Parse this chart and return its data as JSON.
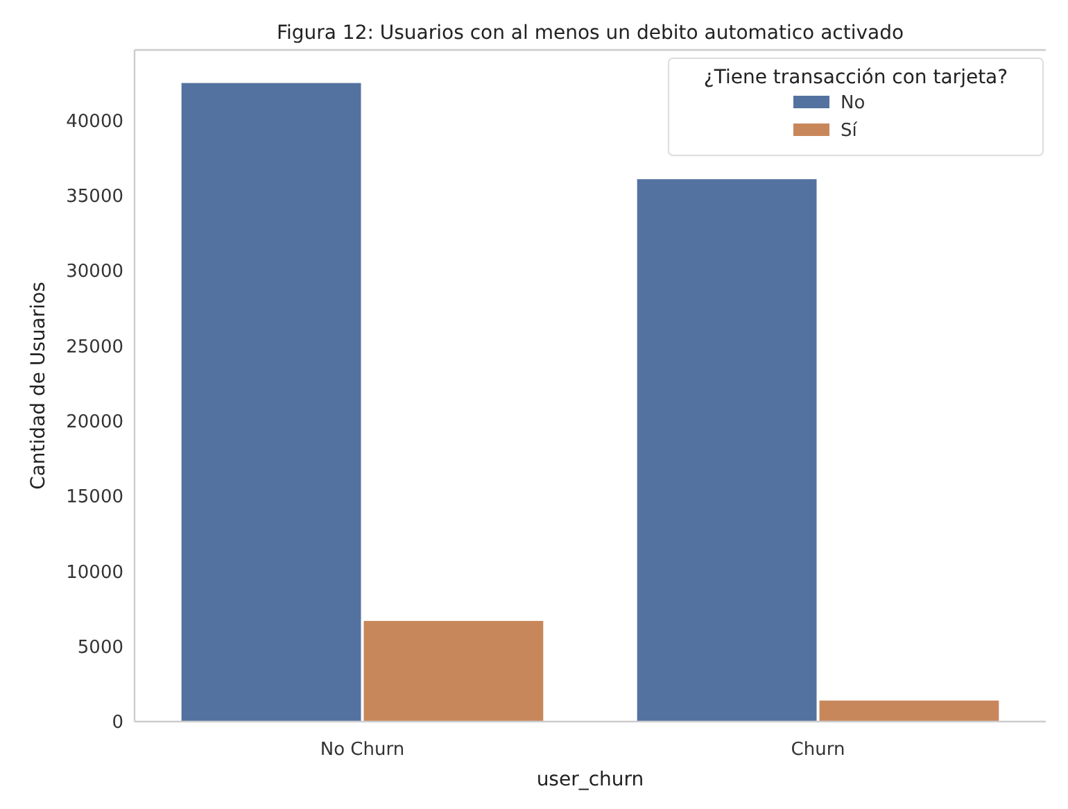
{
  "chart_data": {
    "type": "bar",
    "title": "Figura 12: Usuarios con al menos un debito automatico activado",
    "xlabel": "user_churn",
    "ylabel": "Cantidad de Usuarios",
    "legend_title": "¿Tiene transacción con tarjeta?",
    "categories": [
      "No Churn",
      "Churn"
    ],
    "series": [
      {
        "name": "No",
        "color": "#5372a0",
        "values": [
          42500,
          36100
        ]
      },
      {
        "name": "Sí",
        "color": "#c8875a",
        "values": [
          6700,
          1400
        ]
      }
    ],
    "ylim": [
      0,
      44700
    ],
    "yticks": [
      0,
      5000,
      10000,
      15000,
      20000,
      25000,
      30000,
      35000,
      40000
    ],
    "grid": false,
    "legend": "top right"
  }
}
